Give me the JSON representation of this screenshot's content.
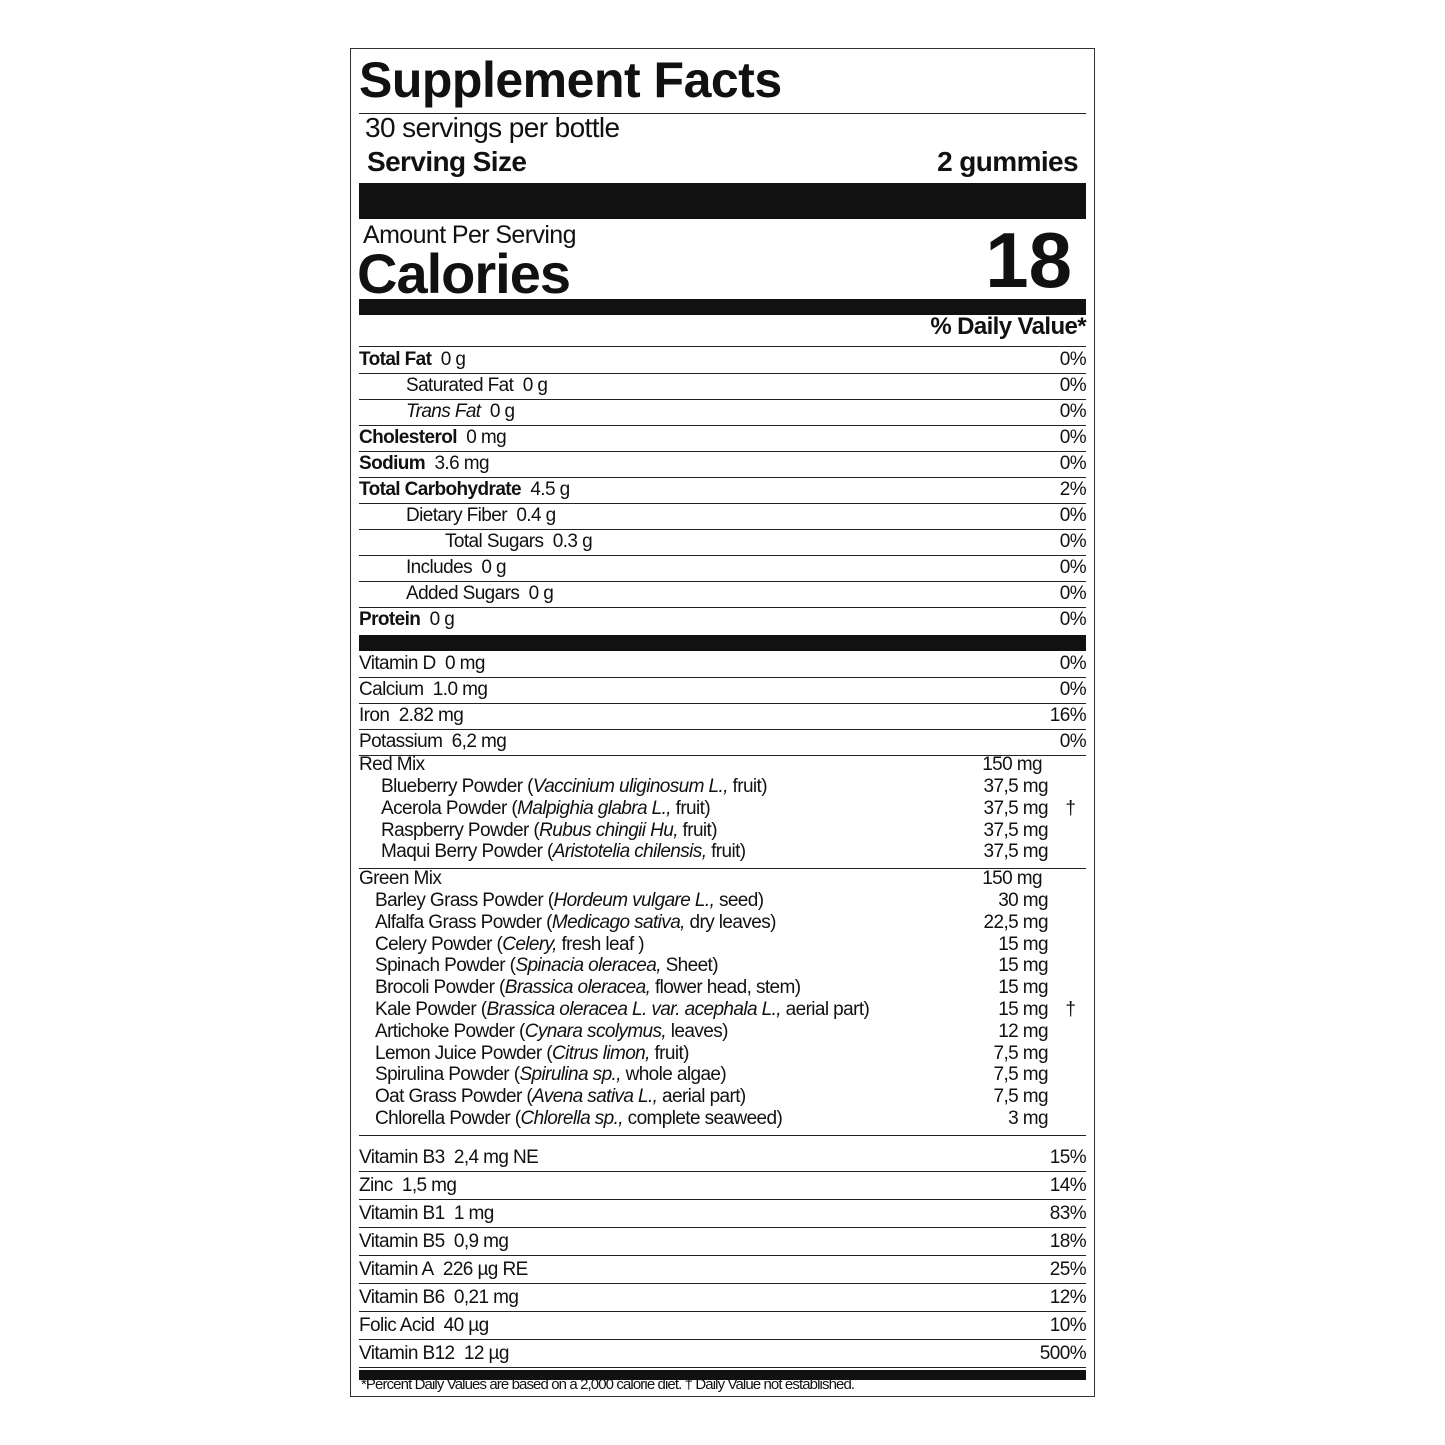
{
  "title": "Supplement Facts",
  "servings_per_container": "30 servings per bottle",
  "serving_size": {
    "label": "Serving Size",
    "value": "2 gummies"
  },
  "amount_per_serving": "Amount Per Serving",
  "calories": {
    "label": "Calories",
    "value": "18"
  },
  "daily_value_header": "% Daily Value*",
  "nutrients": [
    {
      "name": "Total Fat",
      "amount": "0 g",
      "dv": "0%",
      "indent": 0,
      "bold": true
    },
    {
      "name": "Saturated Fat",
      "amount": "0 g",
      "dv": "0%",
      "indent": 1
    },
    {
      "name": "Trans Fat",
      "amount": "0 g",
      "dv": "0%",
      "indent": 1,
      "italic": true
    },
    {
      "name": "Cholesterol",
      "amount": "0 mg",
      "dv": "0%",
      "indent": 0,
      "bold": true
    },
    {
      "name": "Sodium",
      "amount": "3.6 mg",
      "dv": "0%",
      "indent": 0,
      "bold": true
    },
    {
      "name": "Total Carbohydrate",
      "amount": "4.5 g",
      "dv": "2%",
      "indent": 0,
      "bold": true
    },
    {
      "name": "Dietary Fiber",
      "amount": "0.4 g",
      "dv": "0%",
      "indent": 1
    },
    {
      "name": "Total Sugars",
      "amount": "0.3 g",
      "dv": "0%",
      "indent": 2
    },
    {
      "name": "Includes",
      "amount": "0 g",
      "dv": "0%",
      "indent": 1
    },
    {
      "name": "Added Sugars",
      "amount": "0 g",
      "dv": "0%",
      "indent": 1
    },
    {
      "name": "Protein",
      "amount": "0 g",
      "dv": "0%",
      "indent": 0,
      "bold": true
    }
  ],
  "minerals": [
    {
      "name": "Vitamin D",
      "amount": "0 mg",
      "dv": "0%"
    },
    {
      "name": "Calcium",
      "amount": "1.0 mg",
      "dv": "0%"
    },
    {
      "name": "Iron",
      "amount": "2.82 mg",
      "dv": "16%"
    },
    {
      "name": "Potassium",
      "amount": "6,2 mg",
      "dv": "0%"
    }
  ],
  "mixes": [
    {
      "name": "Red Mix",
      "amount": "150 mg",
      "dagger": "†",
      "items": [
        {
          "prefix": "Blueberry Powder (",
          "latin": "Vaccinium uliginosum L.,",
          "suffix": " fruit)",
          "amount": "37,5 mg"
        },
        {
          "prefix": "Acerola Powder (",
          "latin": "Malpighia glabra L.,",
          "suffix": " fruit)",
          "amount": "37,5 mg"
        },
        {
          "prefix": "Raspberry Powder (",
          "latin": "Rubus chingii Hu,",
          "suffix": " fruit)",
          "amount": "37,5 mg"
        },
        {
          "prefix": "Maqui Berry Powder (",
          "latin": "Aristotelia chilensis,",
          "suffix": " fruit)",
          "amount": "37,5 mg"
        }
      ]
    },
    {
      "name": "Green Mix",
      "amount": "150 mg",
      "dagger": "†",
      "items": [
        {
          "prefix": "Barley Grass Powder (",
          "latin": "Hordeum vulgare L.,",
          "suffix": " seed)",
          "amount": "30 mg"
        },
        {
          "prefix": "Alfalfa Grass Powder (",
          "latin": "Medicago sativa,",
          "suffix": " dry leaves)",
          "amount": "22,5 mg"
        },
        {
          "prefix": "Celery Powder (",
          "latin": "Celery,",
          "suffix": " fresh leaf )",
          "amount": "15 mg"
        },
        {
          "prefix": "Spinach Powder (",
          "latin": "Spinacia oleracea,",
          "suffix": " Sheet)",
          "amount": "15 mg"
        },
        {
          "prefix": "Brocoli Powder (",
          "latin": "Brassica oleracea,",
          "suffix": " flower head, stem)",
          "amount": "15 mg"
        },
        {
          "prefix": "Kale Powder (",
          "latin": "Brassica oleracea L. var. acephala L.,",
          "suffix": " aerial part)",
          "amount": "15 mg"
        },
        {
          "prefix": "Artichoke Powder (",
          "latin": "Cynara scolymus,",
          "suffix": " leaves)",
          "amount": "12 mg"
        },
        {
          "prefix": "Lemon Juice Powder (",
          "latin": "Citrus limon,",
          "suffix": " fruit)",
          "amount": "7,5 mg"
        },
        {
          "prefix": "Spirulina Powder (",
          "latin": "Spirulina sp.,",
          "suffix": " whole algae)",
          "amount": "7,5 mg"
        },
        {
          "prefix": "Oat Grass Powder (",
          "latin": "Avena sativa L.,",
          "suffix": " aerial part)",
          "amount": "7,5 mg"
        },
        {
          "prefix": "Chlorella Powder (",
          "latin": "Chlorella sp.,",
          "suffix": " complete seaweed)",
          "amount": "3 mg"
        }
      ]
    }
  ],
  "vitamins": [
    {
      "name": "Vitamin B3",
      "amount": "2,4 mg NE",
      "dv": "15%"
    },
    {
      "name": "Zinc",
      "amount": "1,5 mg",
      "dv": "14%"
    },
    {
      "name": "Vitamin B1",
      "amount": "1 mg",
      "dv": "83%"
    },
    {
      "name": "Vitamin B5",
      "amount": "0,9 mg",
      "dv": "18%"
    },
    {
      "name": "Vitamin A",
      "amount": "226 µg RE",
      "dv": "25%"
    },
    {
      "name": "Vitamin B6",
      "amount": "0,21 mg",
      "dv": "12%"
    },
    {
      "name": "Folic Acid",
      "amount": "40 µg",
      "dv": "10%"
    },
    {
      "name": "Vitamin B12",
      "amount": "12 µg",
      "dv": "500%"
    }
  ],
  "footnote": "*Percent Daily Values are based on a 2,000 calorie diet. † Daily Value not established."
}
